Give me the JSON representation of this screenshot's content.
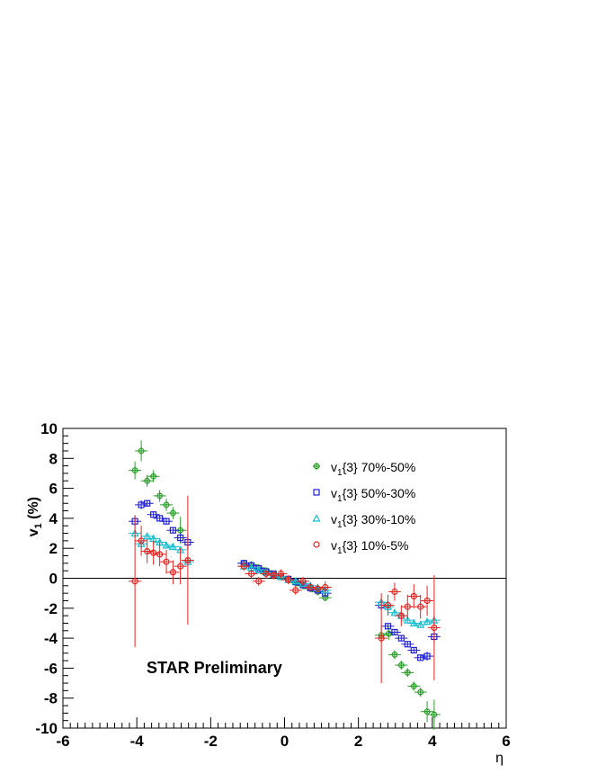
{
  "chart_data": {
    "type": "scatter",
    "title": "",
    "xlabel": "η",
    "ylabel_main": "v",
    "ylabel_sub": "1",
    "ylabel_rest": " (%)",
    "xlim": [
      -6,
      6
    ],
    "ylim": [
      -10,
      10
    ],
    "x_ticks": [
      -6,
      -4,
      -2,
      0,
      2,
      4,
      6
    ],
    "y_ticks": [
      -10,
      -8,
      -6,
      -4,
      -2,
      0,
      2,
      4,
      6,
      8,
      10
    ],
    "x_tick_labels": [
      "-6",
      "-4",
      "-2",
      "0",
      "2",
      "4",
      "6"
    ],
    "y_tick_labels": [
      "-10",
      "-8",
      "-6",
      "-4",
      "-2",
      "0",
      "2",
      "4",
      "6",
      "8",
      "10"
    ],
    "zero_line": true,
    "grid": false,
    "legend_position": "top-right",
    "annotation": "STAR Preliminary",
    "series": [
      {
        "name": "v1{3} 70%-50%",
        "legend_prefix": "v",
        "legend_sub": "1",
        "legend_rest": "{3} 70%-50%",
        "marker": "cross",
        "color": "#2ca02c",
        "points": [
          [
            -4.05,
            7.2,
            0.6
          ],
          [
            -3.88,
            8.5,
            0.7
          ],
          [
            -3.72,
            6.5,
            0.4
          ],
          [
            -3.55,
            6.8,
            0.4
          ],
          [
            -3.38,
            5.5,
            0.4
          ],
          [
            -3.2,
            4.9,
            0.4
          ],
          [
            -3.02,
            4.35,
            0.4
          ],
          [
            -2.82,
            3.2,
            0.9
          ],
          [
            -1.1,
            1.0,
            0.2
          ],
          [
            -0.9,
            0.9,
            0.2
          ],
          [
            -0.7,
            0.7,
            0.2
          ],
          [
            -0.5,
            0.5,
            0.2
          ],
          [
            -0.3,
            0.3,
            0.2
          ],
          [
            -0.1,
            0.1,
            0.2
          ],
          [
            0.1,
            -0.1,
            0.2
          ],
          [
            0.3,
            -0.3,
            0.2
          ],
          [
            0.5,
            -0.5,
            0.2
          ],
          [
            0.7,
            -0.7,
            0.2
          ],
          [
            0.9,
            -0.9,
            0.2
          ],
          [
            1.1,
            -1.3,
            0.2
          ],
          [
            2.62,
            -3.8,
            0.5
          ],
          [
            2.82,
            -3.7,
            0.4
          ],
          [
            2.98,
            -5.1,
            0.3
          ],
          [
            3.16,
            -5.8,
            0.3
          ],
          [
            3.33,
            -6.3,
            0.3
          ],
          [
            3.5,
            -7.2,
            0.3
          ],
          [
            3.68,
            -7.6,
            0.3
          ],
          [
            3.86,
            -8.9,
            0.7
          ],
          [
            4.05,
            -9.1,
            1.0
          ]
        ]
      },
      {
        "name": "v1{3} 50%-30%",
        "legend_prefix": "v",
        "legend_sub": "1",
        "legend_rest": "{3} 50%-30%",
        "marker": "square",
        "color": "#1f1fd6",
        "points": [
          [
            -4.05,
            3.8,
            0.4
          ],
          [
            -3.88,
            4.9,
            0.3
          ],
          [
            -3.72,
            5.0,
            0.2
          ],
          [
            -3.55,
            4.25,
            0.2
          ],
          [
            -3.38,
            4.0,
            0.2
          ],
          [
            -3.2,
            3.8,
            0.2
          ],
          [
            -3.02,
            3.2,
            0.2
          ],
          [
            -2.82,
            2.7,
            0.3
          ],
          [
            -2.62,
            2.4,
            0.5
          ],
          [
            -1.1,
            1.0,
            0.15
          ],
          [
            -0.9,
            0.85,
            0.15
          ],
          [
            -0.7,
            0.65,
            0.15
          ],
          [
            -0.5,
            0.45,
            0.15
          ],
          [
            -0.3,
            0.3,
            0.15
          ],
          [
            -0.1,
            0.1,
            0.15
          ],
          [
            0.1,
            -0.05,
            0.15
          ],
          [
            0.3,
            -0.25,
            0.15
          ],
          [
            0.5,
            -0.45,
            0.15
          ],
          [
            0.7,
            -0.65,
            0.15
          ],
          [
            0.9,
            -0.8,
            0.15
          ],
          [
            1.1,
            -1.0,
            0.15
          ],
          [
            2.62,
            -1.8,
            0.3
          ],
          [
            2.8,
            -3.2,
            0.2
          ],
          [
            2.98,
            -3.6,
            0.2
          ],
          [
            3.16,
            -4.0,
            0.2
          ],
          [
            3.33,
            -4.4,
            0.2
          ],
          [
            3.5,
            -4.8,
            0.2
          ],
          [
            3.68,
            -5.3,
            0.2
          ],
          [
            3.86,
            -5.2,
            0.3
          ],
          [
            4.05,
            -3.9,
            0.4
          ]
        ]
      },
      {
        "name": "v1{3} 30%-10%",
        "legend_prefix": "v",
        "legend_sub": "1",
        "legend_rest": "{3} 30%-10%",
        "marker": "triangle",
        "color": "#17becf",
        "points": [
          [
            -4.05,
            3.0,
            0.3
          ],
          [
            -3.88,
            2.3,
            0.3
          ],
          [
            -3.72,
            2.8,
            0.2
          ],
          [
            -3.55,
            2.65,
            0.2
          ],
          [
            -3.38,
            2.4,
            0.2
          ],
          [
            -3.2,
            2.2,
            0.2
          ],
          [
            -3.02,
            2.1,
            0.2
          ],
          [
            -2.82,
            1.9,
            0.2
          ],
          [
            -2.62,
            1.1,
            0.3
          ],
          [
            -1.1,
            0.8,
            0.15
          ],
          [
            -0.9,
            0.7,
            0.15
          ],
          [
            -0.7,
            0.55,
            0.15
          ],
          [
            -0.5,
            0.4,
            0.15
          ],
          [
            -0.3,
            0.25,
            0.15
          ],
          [
            -0.1,
            0.1,
            0.15
          ],
          [
            0.1,
            -0.1,
            0.15
          ],
          [
            0.3,
            -0.2,
            0.15
          ],
          [
            0.5,
            -0.35,
            0.15
          ],
          [
            0.7,
            -0.5,
            0.15
          ],
          [
            0.9,
            -0.65,
            0.15
          ],
          [
            1.1,
            -0.8,
            0.15
          ],
          [
            2.62,
            -1.6,
            0.2
          ],
          [
            2.8,
            -1.9,
            0.2
          ],
          [
            2.98,
            -2.3,
            0.2
          ],
          [
            3.16,
            -2.5,
            0.2
          ],
          [
            3.33,
            -2.8,
            0.2
          ],
          [
            3.5,
            -3.0,
            0.2
          ],
          [
            3.68,
            -3.1,
            0.2
          ],
          [
            3.86,
            -2.9,
            0.2
          ],
          [
            4.05,
            -2.8,
            0.3
          ]
        ]
      },
      {
        "name": "v1{3} 10%-5%",
        "legend_prefix": "v",
        "legend_sub": "1",
        "legend_rest": "{3} 10%-5%",
        "marker": "circle",
        "color": "#e8231f",
        "points": [
          [
            -4.05,
            -0.2,
            4.4
          ],
          [
            -3.88,
            2.5,
            1.0
          ],
          [
            -3.72,
            1.8,
            0.8
          ],
          [
            -3.55,
            1.7,
            0.8
          ],
          [
            -3.38,
            1.6,
            0.8
          ],
          [
            -3.2,
            1.1,
            0.8
          ],
          [
            -3.02,
            0.4,
            0.8
          ],
          [
            -2.82,
            0.8,
            1.2
          ],
          [
            -2.62,
            1.2,
            4.3
          ],
          [
            -1.1,
            0.8,
            0.3
          ],
          [
            -0.9,
            0.3,
            0.3
          ],
          [
            -0.7,
            -0.2,
            0.3
          ],
          [
            -0.5,
            0.3,
            0.3
          ],
          [
            -0.3,
            0.2,
            0.3
          ],
          [
            -0.1,
            0.3,
            0.3
          ],
          [
            0.1,
            -0.1,
            0.3
          ],
          [
            0.3,
            -0.8,
            0.3
          ],
          [
            0.5,
            -0.2,
            0.3
          ],
          [
            0.7,
            -0.6,
            0.3
          ],
          [
            0.9,
            -0.7,
            0.3
          ],
          [
            1.1,
            -0.6,
            0.4
          ],
          [
            2.62,
            -4.0,
            3.0
          ],
          [
            2.8,
            -1.8,
            0.7
          ],
          [
            2.98,
            -0.9,
            0.6
          ],
          [
            3.16,
            -2.5,
            0.7
          ],
          [
            3.33,
            -1.9,
            0.8
          ],
          [
            3.5,
            -1.2,
            0.8
          ],
          [
            3.68,
            -1.9,
            0.8
          ],
          [
            3.86,
            -1.5,
            1.0
          ],
          [
            4.05,
            -3.3,
            3.5
          ]
        ]
      }
    ]
  }
}
